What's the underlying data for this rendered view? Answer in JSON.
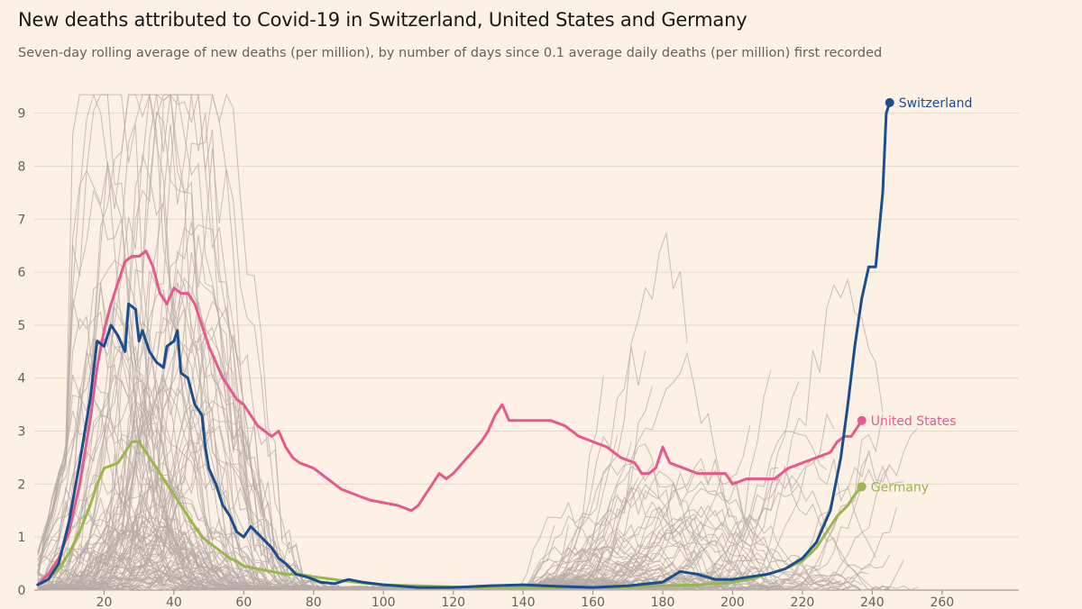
{
  "header": {
    "title": "New deaths attributed to Covid-19 in Switzerland, United States and Germany",
    "subtitle": "Seven-day rolling average of new deaths (per million), by number of days since 0.1 average daily deaths (per million) first recorded"
  },
  "chart_data": {
    "type": "line",
    "title": "New deaths attributed to Covid-19 in Switzerland, United States and Germany",
    "subtitle": "Seven-day rolling average of new deaths (per million), by number of days since 0.1 average daily deaths (per million) first recorded",
    "xlabel": "",
    "ylabel": "",
    "xlim": [
      0,
      282
    ],
    "ylim": [
      0,
      9.3
    ],
    "x_ticks": [
      20,
      40,
      60,
      80,
      100,
      120,
      140,
      160,
      180,
      200,
      220,
      240,
      260
    ],
    "y_ticks": [
      0,
      1,
      2,
      3,
      4,
      5,
      6,
      7,
      8,
      9
    ],
    "grid": "horizontal",
    "legend": "direct labels at line ends",
    "colors": {
      "background": "#fdf1e5",
      "grid": "#e3d8cc",
      "context_lines": "#b5aca7",
      "Switzerland": "#1a4e8c",
      "United States": "#e8588d",
      "Germany": "#99b84c"
    },
    "series": [
      {
        "name": "Switzerland",
        "points": [
          [
            1,
            0.1
          ],
          [
            4,
            0.2
          ],
          [
            7,
            0.5
          ],
          [
            10,
            1.3
          ],
          [
            13,
            2.4
          ],
          [
            16,
            3.6
          ],
          [
            18,
            4.7
          ],
          [
            20,
            4.6
          ],
          [
            22,
            5.0
          ],
          [
            24,
            4.8
          ],
          [
            26,
            4.5
          ],
          [
            27,
            5.4
          ],
          [
            29,
            5.3
          ],
          [
            30,
            4.7
          ],
          [
            31,
            4.9
          ],
          [
            33,
            4.5
          ],
          [
            35,
            4.3
          ],
          [
            37,
            4.2
          ],
          [
            38,
            4.6
          ],
          [
            40,
            4.7
          ],
          [
            41,
            4.9
          ],
          [
            42,
            4.1
          ],
          [
            44,
            4.0
          ],
          [
            46,
            3.5
          ],
          [
            48,
            3.3
          ],
          [
            49,
            2.7
          ],
          [
            50,
            2.3
          ],
          [
            52,
            2.0
          ],
          [
            54,
            1.6
          ],
          [
            56,
            1.4
          ],
          [
            58,
            1.1
          ],
          [
            60,
            1.0
          ],
          [
            62,
            1.2
          ],
          [
            65,
            1.0
          ],
          [
            68,
            0.8
          ],
          [
            70,
            0.6
          ],
          [
            72,
            0.5
          ],
          [
            75,
            0.3
          ],
          [
            78,
            0.25
          ],
          [
            82,
            0.15
          ],
          [
            86,
            0.12
          ],
          [
            90,
            0.2
          ],
          [
            94,
            0.15
          ],
          [
            100,
            0.1
          ],
          [
            110,
            0.05
          ],
          [
            120,
            0.05
          ],
          [
            130,
            0.08
          ],
          [
            140,
            0.1
          ],
          [
            150,
            0.07
          ],
          [
            160,
            0.05
          ],
          [
            170,
            0.08
          ],
          [
            180,
            0.15
          ],
          [
            185,
            0.35
          ],
          [
            190,
            0.3
          ],
          [
            195,
            0.2
          ],
          [
            200,
            0.2
          ],
          [
            205,
            0.25
          ],
          [
            210,
            0.3
          ],
          [
            215,
            0.4
          ],
          [
            220,
            0.6
          ],
          [
            224,
            0.9
          ],
          [
            228,
            1.5
          ],
          [
            231,
            2.5
          ],
          [
            233,
            3.5
          ],
          [
            235,
            4.6
          ],
          [
            237,
            5.5
          ],
          [
            239,
            6.1
          ],
          [
            241,
            6.1
          ],
          [
            243,
            7.5
          ],
          [
            244,
            9.0
          ],
          [
            245,
            9.2
          ]
        ]
      },
      {
        "name": "United States",
        "points": [
          [
            1,
            0.1
          ],
          [
            4,
            0.3
          ],
          [
            7,
            0.6
          ],
          [
            10,
            1.1
          ],
          [
            13,
            2.0
          ],
          [
            16,
            3.2
          ],
          [
            18,
            4.2
          ],
          [
            20,
            4.9
          ],
          [
            22,
            5.4
          ],
          [
            24,
            5.8
          ],
          [
            26,
            6.2
          ],
          [
            28,
            6.3
          ],
          [
            30,
            6.3
          ],
          [
            32,
            6.4
          ],
          [
            34,
            6.1
          ],
          [
            36,
            5.6
          ],
          [
            38,
            5.4
          ],
          [
            40,
            5.7
          ],
          [
            42,
            5.6
          ],
          [
            44,
            5.6
          ],
          [
            46,
            5.4
          ],
          [
            48,
            5.0
          ],
          [
            50,
            4.6
          ],
          [
            52,
            4.3
          ],
          [
            54,
            4.0
          ],
          [
            56,
            3.8
          ],
          [
            58,
            3.6
          ],
          [
            60,
            3.5
          ],
          [
            62,
            3.3
          ],
          [
            64,
            3.1
          ],
          [
            66,
            3.0
          ],
          [
            68,
            2.9
          ],
          [
            70,
            3.0
          ],
          [
            72,
            2.7
          ],
          [
            74,
            2.5
          ],
          [
            76,
            2.4
          ],
          [
            80,
            2.3
          ],
          [
            84,
            2.1
          ],
          [
            88,
            1.9
          ],
          [
            92,
            1.8
          ],
          [
            96,
            1.7
          ],
          [
            100,
            1.65
          ],
          [
            104,
            1.6
          ],
          [
            108,
            1.5
          ],
          [
            110,
            1.6
          ],
          [
            112,
            1.8
          ],
          [
            114,
            2.0
          ],
          [
            116,
            2.2
          ],
          [
            118,
            2.1
          ],
          [
            120,
            2.2
          ],
          [
            124,
            2.5
          ],
          [
            128,
            2.8
          ],
          [
            130,
            3.0
          ],
          [
            132,
            3.3
          ],
          [
            134,
            3.5
          ],
          [
            136,
            3.2
          ],
          [
            140,
            3.2
          ],
          [
            144,
            3.2
          ],
          [
            148,
            3.2
          ],
          [
            152,
            3.1
          ],
          [
            156,
            2.9
          ],
          [
            160,
            2.8
          ],
          [
            164,
            2.7
          ],
          [
            168,
            2.5
          ],
          [
            172,
            2.4
          ],
          [
            174,
            2.2
          ],
          [
            176,
            2.2
          ],
          [
            178,
            2.3
          ],
          [
            180,
            2.7
          ],
          [
            182,
            2.4
          ],
          [
            186,
            2.3
          ],
          [
            190,
            2.2
          ],
          [
            194,
            2.2
          ],
          [
            198,
            2.2
          ],
          [
            200,
            2.0
          ],
          [
            204,
            2.1
          ],
          [
            208,
            2.1
          ],
          [
            212,
            2.1
          ],
          [
            216,
            2.3
          ],
          [
            220,
            2.4
          ],
          [
            224,
            2.5
          ],
          [
            228,
            2.6
          ],
          [
            230,
            2.8
          ],
          [
            232,
            2.9
          ],
          [
            234,
            2.9
          ],
          [
            236,
            3.1
          ],
          [
            237,
            3.2
          ]
        ]
      },
      {
        "name": "Germany",
        "points": [
          [
            1,
            0.1
          ],
          [
            4,
            0.2
          ],
          [
            7,
            0.4
          ],
          [
            10,
            0.7
          ],
          [
            13,
            1.1
          ],
          [
            16,
            1.6
          ],
          [
            18,
            2.0
          ],
          [
            20,
            2.3
          ],
          [
            22,
            2.35
          ],
          [
            24,
            2.4
          ],
          [
            26,
            2.6
          ],
          [
            28,
            2.8
          ],
          [
            30,
            2.8
          ],
          [
            32,
            2.6
          ],
          [
            34,
            2.4
          ],
          [
            36,
            2.2
          ],
          [
            38,
            2.0
          ],
          [
            40,
            1.8
          ],
          [
            42,
            1.6
          ],
          [
            44,
            1.4
          ],
          [
            46,
            1.2
          ],
          [
            48,
            1.0
          ],
          [
            50,
            0.9
          ],
          [
            52,
            0.8
          ],
          [
            54,
            0.7
          ],
          [
            56,
            0.6
          ],
          [
            58,
            0.55
          ],
          [
            60,
            0.45
          ],
          [
            64,
            0.4
          ],
          [
            68,
            0.35
          ],
          [
            72,
            0.3
          ],
          [
            76,
            0.3
          ],
          [
            80,
            0.25
          ],
          [
            84,
            0.22
          ],
          [
            88,
            0.18
          ],
          [
            92,
            0.15
          ],
          [
            96,
            0.12
          ],
          [
            100,
            0.1
          ],
          [
            110,
            0.08
          ],
          [
            120,
            0.06
          ],
          [
            130,
            0.05
          ],
          [
            140,
            0.05
          ],
          [
            150,
            0.05
          ],
          [
            160,
            0.05
          ],
          [
            170,
            0.06
          ],
          [
            180,
            0.08
          ],
          [
            190,
            0.1
          ],
          [
            200,
            0.15
          ],
          [
            205,
            0.2
          ],
          [
            210,
            0.3
          ],
          [
            215,
            0.4
          ],
          [
            220,
            0.55
          ],
          [
            224,
            0.8
          ],
          [
            227,
            1.1
          ],
          [
            230,
            1.4
          ],
          [
            233,
            1.6
          ],
          [
            235,
            1.8
          ],
          [
            237,
            1.95
          ]
        ]
      }
    ],
    "labels": {
      "Switzerland": "Switzerland",
      "United States": "United States",
      "Germany": "Germany"
    }
  }
}
